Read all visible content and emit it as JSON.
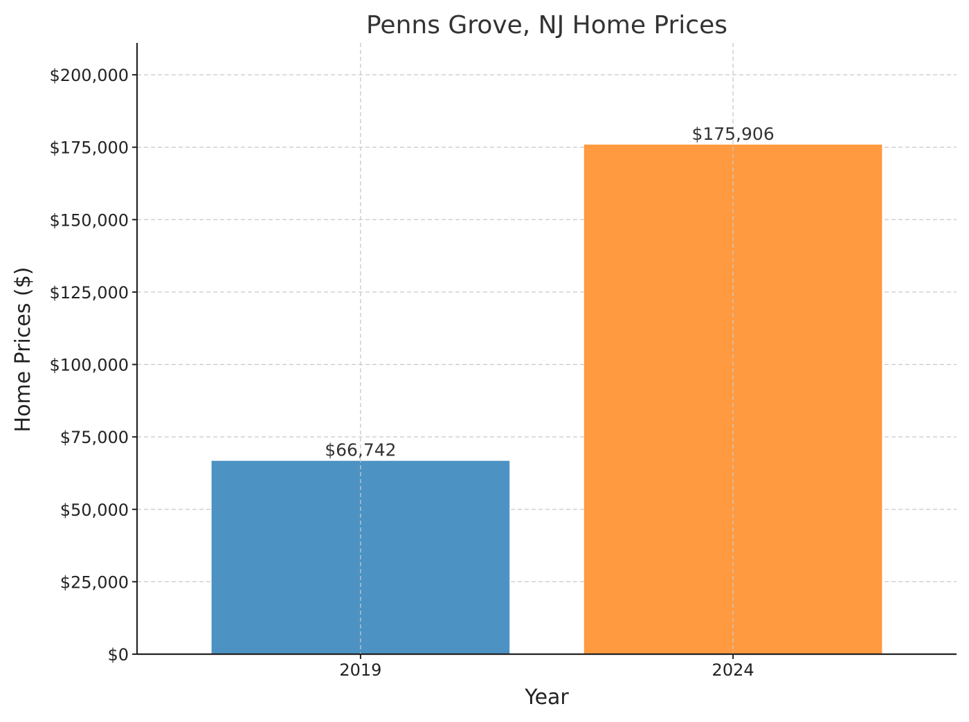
{
  "chart_data": {
    "type": "bar",
    "title": "Penns Grove, NJ Home Prices",
    "xlabel": "Year",
    "ylabel": "Home Prices ($)",
    "categories": [
      "2019",
      "2024"
    ],
    "values": [
      66742,
      175906
    ],
    "data_labels": [
      "$66,742",
      "$175,906"
    ],
    "colors": [
      "#4c92c3",
      "#ff9a40"
    ],
    "ylim": [
      0,
      211000
    ],
    "yticks": [
      0,
      25000,
      50000,
      75000,
      100000,
      125000,
      150000,
      175000,
      200000
    ],
    "ytick_labels": [
      "$0",
      "$25,000",
      "$50,000",
      "$75,000",
      "$100,000",
      "$125,000",
      "$150,000",
      "$175,000",
      "$200,000"
    ],
    "grid": true,
    "legend": false
  }
}
